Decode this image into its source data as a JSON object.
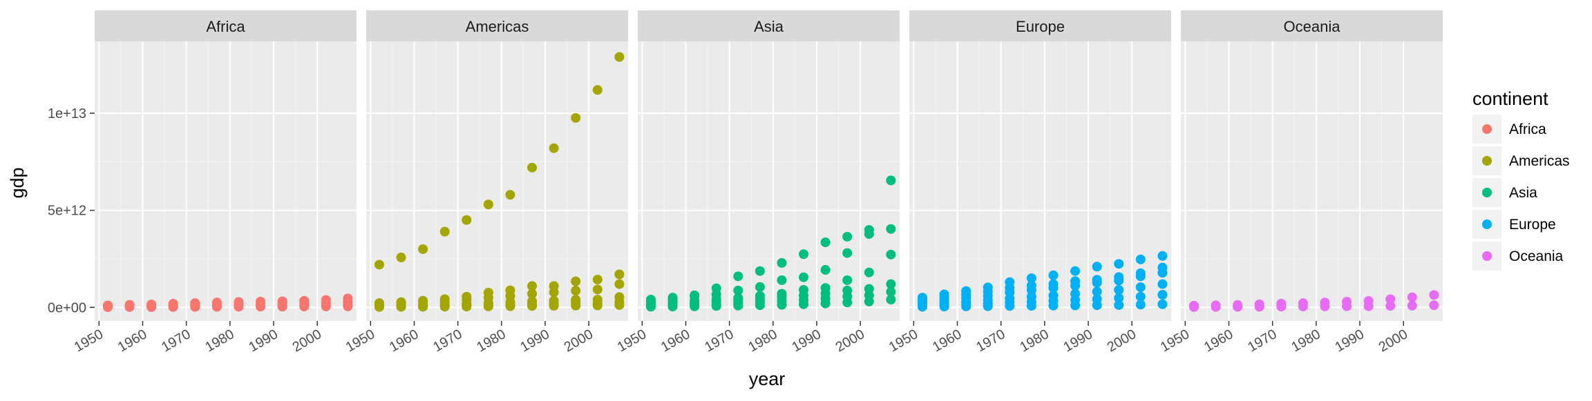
{
  "chart_data": {
    "type": "scatter",
    "xlabel": "year",
    "ylabel": "gdp",
    "xlim": [
      1949,
      2009
    ],
    "ylim": [
      -700000000000,
      13700000000000
    ],
    "x_ticks": [
      1950,
      1960,
      1970,
      1980,
      1990,
      2000
    ],
    "x_tick_labels": [
      "1950",
      "1960",
      "1970",
      "1980",
      "1990",
      "2000"
    ],
    "y_ticks": [
      0,
      5000000000000,
      10000000000000
    ],
    "y_tick_labels": [
      "0e+00",
      "5e+12",
      "1e+13"
    ],
    "grid": true,
    "legend": {
      "title": "continent",
      "position": "right",
      "entries": [
        "Africa",
        "Americas",
        "Asia",
        "Europe",
        "Oceania"
      ]
    },
    "years": [
      1952,
      1957,
      1962,
      1967,
      1972,
      1977,
      1982,
      1987,
      1992,
      1997,
      2002,
      2007
    ],
    "facets": [
      {
        "name": "Africa",
        "color": "#F8766D",
        "series": [
          {
            "y": [
              100000000000.0,
              130000000000.0,
              150000000000.0,
              190000000000.0,
              220000000000.0,
              250000000000.0,
              280000000000.0,
              300000000000.0,
              310000000000.0,
              340000000000.0,
              380000000000.0,
              460000000000.0
            ]
          },
          {
            "y": [
              60000000000.0,
              70000000000.0,
              80000000000.0,
              100000000000.0,
              120000000000.0,
              140000000000.0,
              160000000000.0,
              170000000000.0,
              180000000000.0,
              200000000000.0,
              230000000000.0,
              280000000000.0
            ]
          },
          {
            "y": [
              30000000000.0,
              35000000000.0,
              40000000000.0,
              50000000000.0,
              60000000000.0,
              70000000000.0,
              80000000000.0,
              90000000000.0,
              100000000000.0,
              110000000000.0,
              120000000000.0,
              150000000000.0
            ]
          },
          {
            "y": [
              10000000000.0,
              12000000000.0,
              15000000000.0,
              18000000000.0,
              22000000000.0,
              26000000000.0,
              30000000000.0,
              34000000000.0,
              38000000000.0,
              42000000000.0,
              46000000000.0,
              50000000000.0
            ]
          }
        ]
      },
      {
        "name": "Americas",
        "color": "#A3A500",
        "series": [
          {
            "y": [
              2200000000000.0,
              2570000000000.0,
              3000000000000.0,
              3900000000000.0,
              4500000000000.0,
              5300000000000.0,
              5800000000000.0,
              7200000000000.0,
              8200000000000.0,
              9760000000000.0,
              11200000000000.0,
              12900000000000.0
            ]
          },
          {
            "y": [
              220000000000.0,
              270000000000.0,
              340000000000.0,
              420000000000.0,
              550000000000.0,
              760000000000.0,
              880000000000.0,
              1100000000000.0,
              1100000000000.0,
              1340000000000.0,
              1430000000000.0,
              1700000000000.0
            ]
          },
          {
            "y": [
              170000000000.0,
              210000000000.0,
              260000000000.0,
              320000000000.0,
              400000000000.0,
              500000000000.0,
              590000000000.0,
              700000000000.0,
              780000000000.0,
              860000000000.0,
              920000000000.0,
              1200000000000.0
            ]
          },
          {
            "y": [
              100000000000.0,
              110000000000.0,
              130000000000.0,
              160000000000.0,
              200000000000.0,
              230000000000.0,
              280000000000.0,
              310000000000.0,
              340000000000.0,
              390000000000.0,
              400000000000.0,
              530000000000.0
            ]
          },
          {
            "y": [
              50000000000.0,
              60000000000.0,
              70000000000.0,
              80000000000.0,
              100000000000.0,
              120000000000.0,
              140000000000.0,
              160000000000.0,
              180000000000.0,
              210000000000.0,
              220000000000.0,
              280000000000.0
            ]
          },
          {
            "y": [
              20000000000.0,
              25000000000.0,
              30000000000.0,
              35000000000.0,
              40000000000.0,
              50000000000.0,
              60000000000.0,
              70000000000.0,
              80000000000.0,
              90000000000.0,
              100000000000.0,
              120000000000.0
            ]
          }
        ]
      },
      {
        "name": "Asia",
        "color": "#00BF7D",
        "series": [
          {
            "y": [
              280000000000.0,
              400000000000.0,
              620000000000.0,
              980000000000.0,
              1600000000000.0,
              1870000000000.0,
              2290000000000.0,
              2740000000000.0,
              3350000000000.0,
              3640000000000.0,
              3780000000000.0,
              4040000000000.0
            ]
          },
          {
            "y": [
              400000000000.0,
              500000000000.0,
              570000000000.0,
              660000000000.0,
              870000000000.0,
              1050000000000.0,
              1400000000000.0,
              1550000000000.0,
              1930000000000.0,
              2800000000000.0,
              3990000000000.0,
              6540000000000.0
            ]
          },
          {
            "y": [
              230000000000.0,
              270000000000.0,
              340000000000.0,
              400000000000.0,
              480000000000.0,
              590000000000.0,
              700000000000.0,
              900000000000.0,
              1000000000000.0,
              1400000000000.0,
              1800000000000.0,
              2720000000000.0
            ]
          },
          {
            "y": [
              150000000000.0,
              180000000000.0,
              230000000000.0,
              280000000000.0,
              340000000000.0,
              430000000000.0,
              530000000000.0,
              610000000000.0,
              710000000000.0,
              870000000000.0,
              950000000000.0,
              1200000000000.0
            ]
          },
          {
            "y": [
              80000000000.0,
              100000000000.0,
              130000000000.0,
              160000000000.0,
              210000000000.0,
              260000000000.0,
              320000000000.0,
              380000000000.0,
              450000000000.0,
              560000000000.0,
              620000000000.0,
              800000000000.0
            ]
          },
          {
            "y": [
              30000000000.0,
              40000000000.0,
              50000000000.0,
              70000000000.0,
              90000000000.0,
              110000000000.0,
              130000000000.0,
              160000000000.0,
              200000000000.0,
              250000000000.0,
              300000000000.0,
              400000000000.0
            ]
          }
        ]
      },
      {
        "name": "Europe",
        "color": "#00B0F6",
        "series": [
          {
            "y": [
              500000000000.0,
              670000000000.0,
              840000000000.0,
              1030000000000.0,
              1300000000000.0,
              1500000000000.0,
              1650000000000.0,
              1870000000000.0,
              2100000000000.0,
              2240000000000.0,
              2470000000000.0,
              2650000000000.0
            ]
          },
          {
            "y": [
              420000000000.0,
              550000000000.0,
              660000000000.0,
              810000000000.0,
              1000000000000.0,
              1120000000000.0,
              1200000000000.0,
              1350000000000.0,
              1420000000000.0,
              1560000000000.0,
              1760000000000.0,
              2050000000000.0
            ]
          },
          {
            "y": [
              300000000000.0,
              380000000000.0,
              500000000000.0,
              600000000000.0,
              780000000000.0,
              890000000000.0,
              1000000000000.0,
              1120000000000.0,
              1270000000000.0,
              1380000000000.0,
              1600000000000.0,
              1780000000000.0
            ]
          },
          {
            "y": [
              200000000000.0,
              250000000000.0,
              300000000000.0,
              370000000000.0,
              460000000000.0,
              550000000000.0,
              610000000000.0,
              700000000000.0,
              810000000000.0,
              900000000000.0,
              1040000000000.0,
              1200000000000.0
            ]
          },
          {
            "y": [
              100000000000.0,
              130000000000.0,
              160000000000.0,
              200000000000.0,
              250000000000.0,
              290000000000.0,
              330000000000.0,
              380000000000.0,
              420000000000.0,
              480000000000.0,
              550000000000.0,
              650000000000.0
            ]
          },
          {
            "y": [
              30000000000.0,
              40000000000.0,
              50000000000.0,
              60000000000.0,
              70000000000.0,
              80000000000.0,
              90000000000.0,
              100000000000.0,
              110000000000.0,
              120000000000.0,
              140000000000.0,
              160000000000.0
            ]
          }
        ]
      },
      {
        "name": "Oceania",
        "color": "#E76BF3",
        "series": [
          {
            "y": [
              87000000000.0,
              105000000000.0,
              125000000000.0,
              155000000000.0,
              190000000000.0,
              215000000000.0,
              245000000000.0,
              290000000000.0,
              325000000000.0,
              420000000000.0,
              520000000000.0,
              640000000000.0
            ]
          },
          {
            "y": [
              17000000000.0,
              21000000000.0,
              25000000000.0,
              32000000000.0,
              40000000000.0,
              44000000000.0,
              50000000000.0,
              58000000000.0,
              60000000000.0,
              76000000000.0,
              85000000000.0,
              108000000000.0
            ]
          }
        ]
      }
    ]
  }
}
